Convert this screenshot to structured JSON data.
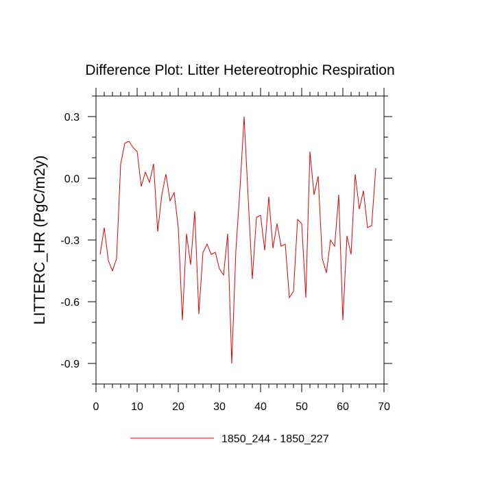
{
  "chart_data": {
    "type": "line",
    "title": "Difference Plot: Litter Hetereotrophic Respiration",
    "xlabel": "",
    "ylabel": "LITTERC_HR  (PgC/m2y)",
    "xlim": [
      0,
      70
    ],
    "ylim": [
      -1.0,
      0.4
    ],
    "x_ticks": [
      0,
      10,
      20,
      30,
      40,
      50,
      60,
      70
    ],
    "x_tick_labels": [
      "0",
      "10",
      "20",
      "30",
      "40",
      "50",
      "60",
      "70"
    ],
    "y_ticks": [
      0.3,
      0.0,
      -0.3,
      -0.6,
      -0.9
    ],
    "y_tick_labels": [
      "0.3",
      "0.0",
      "-0.3",
      "-0.6",
      "-0.9"
    ],
    "legend_position": "bottom-center",
    "series": [
      {
        "name": "1850_244 - 1850_227",
        "color": "#e00000",
        "x": [
          1,
          2,
          3,
          4,
          5,
          6,
          7,
          8,
          9,
          10,
          11,
          12,
          13,
          14,
          15,
          16,
          17,
          18,
          19,
          20,
          21,
          22,
          23,
          24,
          25,
          26,
          27,
          28,
          29,
          30,
          31,
          32,
          33,
          34,
          35,
          36,
          37,
          38,
          39,
          40,
          41,
          42,
          43,
          44,
          45,
          46,
          47,
          48,
          49,
          50,
          51,
          52,
          53,
          54,
          55,
          56,
          57,
          58,
          59,
          60,
          61,
          62,
          63,
          64,
          65,
          66,
          67,
          68
        ],
        "values": [
          -0.37,
          -0.24,
          -0.4,
          -0.45,
          -0.39,
          0.07,
          0.17,
          0.18,
          0.15,
          0.13,
          -0.04,
          0.03,
          -0.02,
          0.07,
          -0.26,
          -0.08,
          0.02,
          -0.11,
          -0.07,
          -0.24,
          -0.69,
          -0.27,
          -0.42,
          -0.16,
          -0.66,
          -0.36,
          -0.32,
          -0.37,
          -0.36,
          -0.44,
          -0.47,
          -0.27,
          -0.9,
          -0.35,
          -0.05,
          0.3,
          -0.1,
          -0.49,
          -0.19,
          -0.18,
          -0.35,
          -0.09,
          -0.34,
          -0.22,
          -0.33,
          -0.32,
          -0.58,
          -0.55,
          -0.2,
          -0.22,
          -0.58,
          0.13,
          -0.08,
          0.01,
          -0.39,
          -0.46,
          -0.3,
          -0.33,
          -0.08,
          -0.69,
          -0.28,
          -0.37,
          0.02,
          -0.15,
          -0.06,
          -0.24,
          -0.23,
          0.05
        ]
      }
    ]
  }
}
